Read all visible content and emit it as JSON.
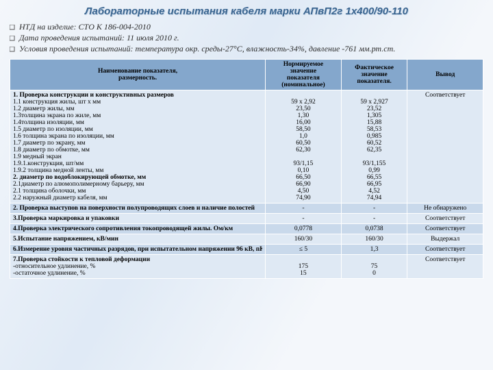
{
  "title": "Лабораторные  испытания кабеля марки АПвП2г 1х400/90-110",
  "meta": [
    "НТД на изделие: СТО К 186-004-2010",
    "Дата проведения испытаний: 11 июля 2010 г.",
    "Условия проведения испытаний: температура окр. среды-27°С, влажность-34%, давление -761 мм.рт.ст."
  ],
  "table": {
    "headers": [
      [
        "Наименование показателя,",
        "размерность."
      ],
      [
        "Нормируемое",
        "значение",
        "показателя (номинальное)"
      ],
      [
        "Фактическое",
        "значение",
        "показателя."
      ],
      [
        "Вывод"
      ]
    ],
    "rows": [
      {
        "name": [
          "<b>1. Проверка конструкции и конструктивных размеров</b>",
          "1.1 конструкция жилы, шт х мм",
          "1.2 диаметр жилы, мм",
          "1.3толщина  экрана  по жиле, мм",
          "1.4толщина изоляции, мм",
          "1.5 диаметр по изоляции, мм",
          "1.6 толщина экрана по изоляции, мм",
          "1.7 диаметр по экрану, мм",
          "1.8 диаметр по обмотке, мм",
          "1.9 медный экран",
          "1.9.1.конструкция, шт/мм",
          "1.9.2 толщина медной ленты, мм",
          "<b>2. диаметр по водоблокирующей обмотке, мм</b>",
          "2.1диаметр по алюмополимерному барьеру, мм",
          "2.1 толщина оболочки, мм",
          "2.2 наружный диаметр кабеля, мм"
        ],
        "nominal": [
          "",
          "59 х 2,92",
          "23,50",
          "1,30",
          "16,00",
          "58,50",
          "1,0",
          "60,50",
          "62,30",
          "",
          "93/1,15",
          "0,10",
          "66,50",
          "66,90",
          "4,50",
          "74,90"
        ],
        "actual": [
          "",
          "59 х 2,927",
          "23,52",
          "1,305",
          "15,88",
          "58,53",
          "0,985",
          "60,52",
          "62,35",
          "",
          "93/1,155",
          "0,99",
          "66,55",
          "66,95",
          "4,52",
          "74,94"
        ],
        "result": "Соответствует"
      },
      {
        "name": [
          "<b>2. Проверка выступов на поверхности полупроводящих слоев и наличие полостей</b>"
        ],
        "nominal": [
          "-"
        ],
        "actual": [
          "-"
        ],
        "result": "Не обнаружено"
      },
      {
        "name": [
          "<b>3.Проверка маркировка и упаковки</b>"
        ],
        "nominal": [
          "-"
        ],
        "actual": [
          "-"
        ],
        "result": "Соответствует"
      },
      {
        "name": [
          "<b>4.Проверка электрического сопротивления токопроводящей жилы. Ом/км</b>"
        ],
        "nominal": [
          "0,0778"
        ],
        "actual": [
          "0,0738"
        ],
        "result": "Соответствует"
      },
      {
        "name": [
          "<b>5.Испытание напряжением, кВ/мин</b>"
        ],
        "nominal": [
          "160/30"
        ],
        "actual": [
          "160/30"
        ],
        "result": "Выдержал"
      },
      {
        "name": [
          "<b>6.Измерение уровня частичных разрядов, при испытательном напряжении 96 кВ, пКл</b>"
        ],
        "nominal": [
          "≤ 5"
        ],
        "actual": [
          "1,3"
        ],
        "result": "Соответствует"
      },
      {
        "name": [
          "<b>7.Проверка стойкости к тепловой деформации</b>",
          "-относительное удлинение, %",
          "-остаточное удлинение, %"
        ],
        "nominal": [
          "",
          "175",
          "15"
        ],
        "actual": [
          "",
          "75",
          "0"
        ],
        "result": "Соответствует"
      }
    ],
    "row_colors": {
      "odd": "#dfe9f4",
      "even": "#c9d9eb"
    },
    "header_bg": "#84a7cc",
    "border_color": "#ffffff",
    "font_size": 9.5
  }
}
